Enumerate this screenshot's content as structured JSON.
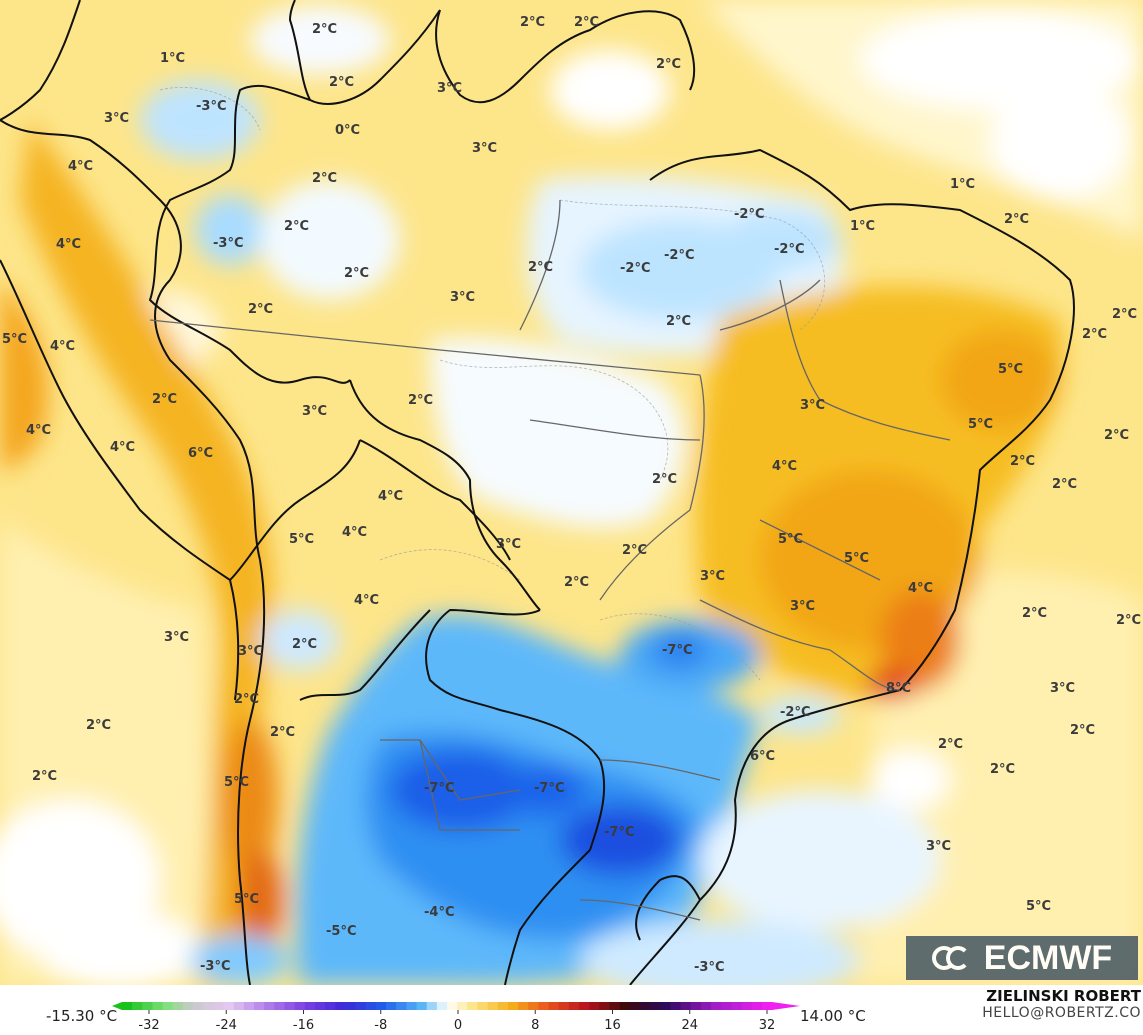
{
  "colors": {
    "warm_light": "#fff3b8",
    "warm": "#fcd34d",
    "warm_mid": "#f4b81b",
    "warm_strong": "#f39c12",
    "hot": "#e8501c",
    "neutral": "#ffffff",
    "cool_light": "#d6efff",
    "cool": "#8fd3ff",
    "cool_mid": "#3ea8f5",
    "cold": "#1d6df0",
    "cold_deep": "#1538d8",
    "border": "#111111",
    "state_border": "#666666"
  },
  "map": {
    "labels": [
      "1°C",
      "-3°C",
      "2°C",
      "2°C",
      "2°C",
      "3°C",
      "2°C",
      "2°C",
      "0°C",
      "3°C",
      "2°C",
      "4°C",
      "3°C",
      "-3°C",
      "2°C",
      "4°C",
      "2°C",
      "2°C",
      "3°C",
      "2°C",
      "-2°C",
      "-2°C",
      "-2°C",
      "-2°C",
      "1°C",
      "1°C",
      "2°C",
      "5°C",
      "4°C",
      "2°C",
      "3°C",
      "2°C",
      "3°C",
      "5°C",
      "2°C",
      "2°C",
      "4°C",
      "4°C",
      "6°C",
      "2°C",
      "4°C",
      "2°C",
      "4°C",
      "5°C",
      "2°C",
      "4°C",
      "3°C",
      "5°C",
      "5°C",
      "2°C",
      "3°C",
      "3°C",
      "4°C",
      "2°C",
      "3°C",
      "2°C",
      "-7°C",
      "5°C",
      "2°C",
      "4°C",
      "3°C",
      "2°C",
      "2°C",
      "8°C",
      "-2°C",
      "2°C",
      "2°C",
      "2°C",
      "2°C",
      "6°C",
      "2°C",
      "5°C",
      "-7°C",
      "-7°C",
      "-7°C",
      "2°C",
      "3°C",
      "-5°C",
      "-4°C",
      "5°C",
      "3°C",
      "-3°C",
      "-3°C",
      "2°C",
      "5°C",
      "2°C"
    ]
  },
  "legend": {
    "min_label": "-15.30 °C",
    "max_label": "14.00 °C",
    "ticks": [
      "-32",
      "-24",
      "-16",
      "-8",
      "0",
      "8",
      "16",
      "24",
      "32"
    ]
  },
  "branding": {
    "logo_text": "ECMWF",
    "author": "ZIELINSKI ROBERT",
    "email": "HELLO@ROBERTZ.CO"
  }
}
